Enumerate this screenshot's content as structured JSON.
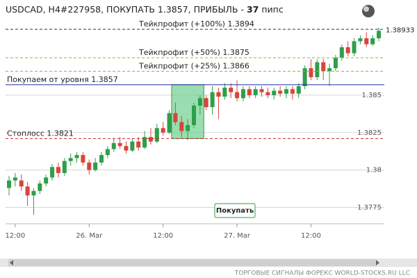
{
  "chart_data": {
    "type": "candlestick",
    "title": "USDCAD, H4#227958, ПОКУПАТЬ 1.3857, ПРИБЫЛЬ -",
    "title_value": "37",
    "title_unit": "пипс",
    "categories": [
      null,
      "12:00",
      null,
      null,
      null,
      null,
      null,
      null,
      null,
      null,
      null,
      null,
      null,
      "26. Mar",
      null,
      null,
      null,
      null,
      null,
      null,
      null,
      null,
      null,
      null,
      null,
      "12:00",
      null,
      null,
      null,
      null,
      null,
      null,
      null,
      null,
      null,
      null,
      null,
      "27. Mar",
      null,
      null,
      null,
      null,
      null,
      null,
      null,
      null,
      null,
      null,
      null,
      "12:00",
      null,
      null,
      null,
      null,
      null,
      null,
      null,
      null,
      null,
      null,
      null
    ],
    "open": [
      1.3788,
      1.3793,
      1.3793,
      1.3789,
      1.3783,
      1.3786,
      1.3791,
      1.3795,
      1.3802,
      1.3798,
      1.3806,
      1.3808,
      1.381,
      1.3805,
      1.38,
      1.3805,
      1.381,
      1.3814,
      1.3818,
      1.3816,
      1.3813,
      1.3819,
      1.3815,
      1.3822,
      1.3819,
      1.3828,
      1.3825,
      1.3838,
      1.3832,
      1.3826,
      1.383,
      1.3843,
      1.3848,
      1.3842,
      1.3852,
      1.3849,
      1.3855,
      1.3852,
      1.3848,
      1.3854,
      1.385,
      1.3854,
      1.3852,
      1.385,
      1.3853,
      1.3851,
      1.3854,
      1.3851,
      1.3856,
      1.3868,
      1.3862,
      1.3872,
      1.3866,
      1.3868,
      1.3875,
      1.3882,
      1.3878,
      1.3886,
      1.3888,
      1.3884,
      1.3888
    ],
    "high": [
      1.3796,
      1.3798,
      1.3797,
      1.3792,
      1.3788,
      1.3793,
      1.3797,
      1.3804,
      1.3805,
      1.3808,
      1.3811,
      1.3812,
      1.3812,
      1.3807,
      1.3808,
      1.3812,
      1.3816,
      1.3821,
      1.3822,
      1.3819,
      1.3821,
      1.3822,
      1.3826,
      1.3828,
      1.3831,
      1.3832,
      1.384,
      1.3845,
      1.3836,
      1.3834,
      1.3845,
      1.385,
      1.385,
      1.3856,
      1.3855,
      1.3858,
      1.3858,
      1.386,
      1.3856,
      1.3856,
      1.3856,
      1.3856,
      1.3855,
      1.3855,
      1.3856,
      1.3856,
      1.3856,
      1.3858,
      1.387,
      1.3874,
      1.3874,
      1.3874,
      1.3871,
      1.3877,
      1.3884,
      1.3886,
      1.3888,
      1.389,
      1.3892,
      1.389,
      1.3895
    ],
    "low": [
      1.3783,
      1.3789,
      1.3786,
      1.3776,
      1.377,
      1.3784,
      1.3789,
      1.3793,
      1.3795,
      1.3796,
      1.3803,
      1.3805,
      1.3803,
      1.3797,
      1.3799,
      1.3803,
      1.3808,
      1.3812,
      1.3814,
      1.3811,
      1.3812,
      1.3813,
      1.3814,
      1.3817,
      1.3818,
      1.3823,
      1.3824,
      1.383,
      1.3822,
      1.382,
      1.3828,
      1.3837,
      1.384,
      1.3837,
      1.3834,
      1.3847,
      1.3848,
      1.3846,
      1.3846,
      1.3848,
      1.3848,
      1.3849,
      1.3848,
      1.3847,
      1.3849,
      1.3848,
      1.3847,
      1.3848,
      1.3854,
      1.386,
      1.386,
      1.386,
      1.3856,
      1.3866,
      1.3873,
      1.3876,
      1.3876,
      1.3884,
      1.3882,
      1.3883,
      1.3886
    ],
    "close": [
      1.3793,
      1.3795,
      1.3789,
      1.3783,
      1.3786,
      1.3791,
      1.3795,
      1.3802,
      1.3798,
      1.3806,
      1.3808,
      1.381,
      1.3805,
      1.38,
      1.3805,
      1.381,
      1.3814,
      1.3818,
      1.3816,
      1.3813,
      1.3819,
      1.3815,
      1.3822,
      1.3819,
      1.3828,
      1.3825,
      1.3838,
      1.3832,
      1.3826,
      1.383,
      1.3843,
      1.3848,
      1.3842,
      1.3852,
      1.3849,
      1.3855,
      1.3852,
      1.3848,
      1.3854,
      1.385,
      1.3854,
      1.3852,
      1.385,
      1.3853,
      1.3851,
      1.3854,
      1.3851,
      1.3856,
      1.3868,
      1.3862,
      1.3872,
      1.3866,
      1.3868,
      1.3875,
      1.3882,
      1.3878,
      1.3886,
      1.3888,
      1.3884,
      1.3888,
      1.3893
    ],
    "up_color": "#2e9e4a",
    "down_color": "#d9443b",
    "ylim": [
      1.3765,
      1.3895
    ],
    "yticks": [
      1.3775,
      1.38,
      1.3825,
      1.385
    ],
    "grid": true,
    "levels": [
      {
        "label": "Тейкпрофит (+100%) 1.3894",
        "value": 1.3894,
        "color": "#333333",
        "dashed": true
      },
      {
        "label": "Тейкпрофит (+50%) 1.3875",
        "value": 1.3875,
        "color": "#9ab03a",
        "dashed": true
      },
      {
        "label": "Тейкпрофит (+25%) 1.3866",
        "value": 1.3866,
        "color": "#9ab03a",
        "dashed": true
      },
      {
        "label": "Покупаем от уровня 1.3857",
        "value": 1.3857,
        "color": "#1a2a9a",
        "dashed": false
      },
      {
        "label": "Стоплосс 1.3821",
        "value": 1.3821,
        "color": "#cc2222",
        "dashed": true
      }
    ],
    "last_price": 1.38933,
    "button": "Покупать",
    "footer": "ТОРГОВЫЕ СИГНАЛЫ ФОРЕКС WORLD-STOCKS.RU LLC"
  }
}
